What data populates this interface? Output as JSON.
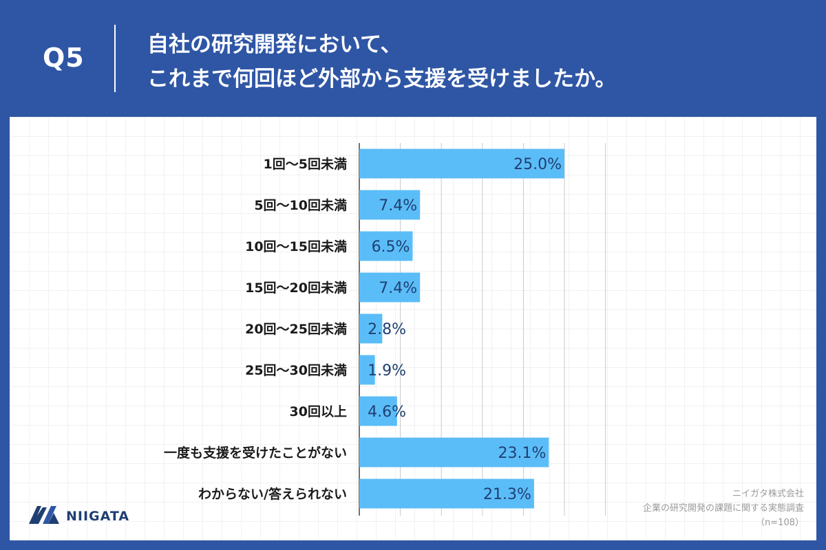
{
  "header": {
    "question_number": "Q5",
    "question_line1": "自社の研究開発において、",
    "question_line2": "これまで何回ほど外部から支援を受けましたか。"
  },
  "footer": {
    "brand": "NIIGATA",
    "company": "ニイガタ株式会社",
    "survey_title": "企業の研究開発の課題に関する実態調査",
    "sample_size": "（n=108）"
  },
  "colors": {
    "background": "#2f56a5",
    "bar": "#5bbdf8",
    "value_text": "#1f3f72"
  },
  "chart_data": {
    "type": "bar",
    "orientation": "horizontal",
    "categories": [
      "1回〜5回未満",
      "5回〜10回未満",
      "10回〜15回未満",
      "15回〜20回未満",
      "20回〜25回未満",
      "25回〜30回未満",
      "30回以上",
      "一度も支援を受けたことがない",
      "わからない/答えられない"
    ],
    "values": [
      25.0,
      7.4,
      6.5,
      7.4,
      2.8,
      1.9,
      4.6,
      23.1,
      21.3
    ],
    "value_labels": [
      "25.0%",
      "7.4%",
      "6.5%",
      "7.4%",
      "2.8%",
      "1.9%",
      "4.6%",
      "23.1%",
      "21.3%"
    ],
    "xlim": [
      0,
      30
    ],
    "grid": true
  }
}
